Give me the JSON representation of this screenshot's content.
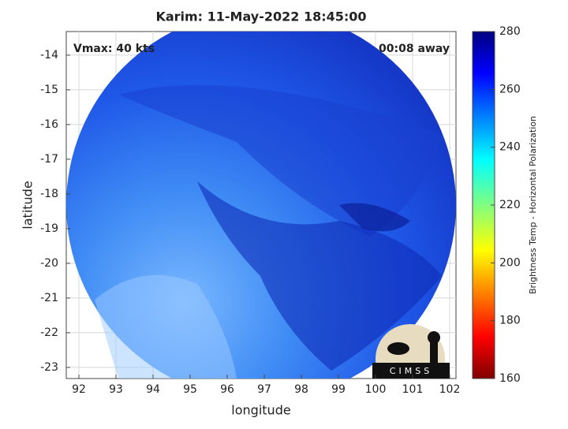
{
  "chart_data": {
    "type": "image-map",
    "title": "Karim: 11-May-2022 18:45:00",
    "annotations": [
      "Vmax: 40 kts",
      "00:08 away"
    ],
    "x_label": "longitude",
    "y_label": "latitude",
    "xlim": [
      91.66,
      102.17
    ],
    "xticks": [
      92,
      93,
      94,
      95,
      96,
      97,
      98,
      99,
      100,
      101,
      102
    ],
    "ylim": [
      -23.32,
      -13.32
    ],
    "yticks": [
      -14,
      -15,
      -16,
      -17,
      -18,
      -19,
      -20,
      -21,
      -22,
      -23
    ],
    "grid": true,
    "colorbar": {
      "label": "Brightness Temp - Horizontal Polarization",
      "lim": [
        160,
        280
      ],
      "ticks": [
        160,
        180,
        200,
        220,
        240,
        260,
        280
      ]
    },
    "logo_text": "CIMSS"
  }
}
